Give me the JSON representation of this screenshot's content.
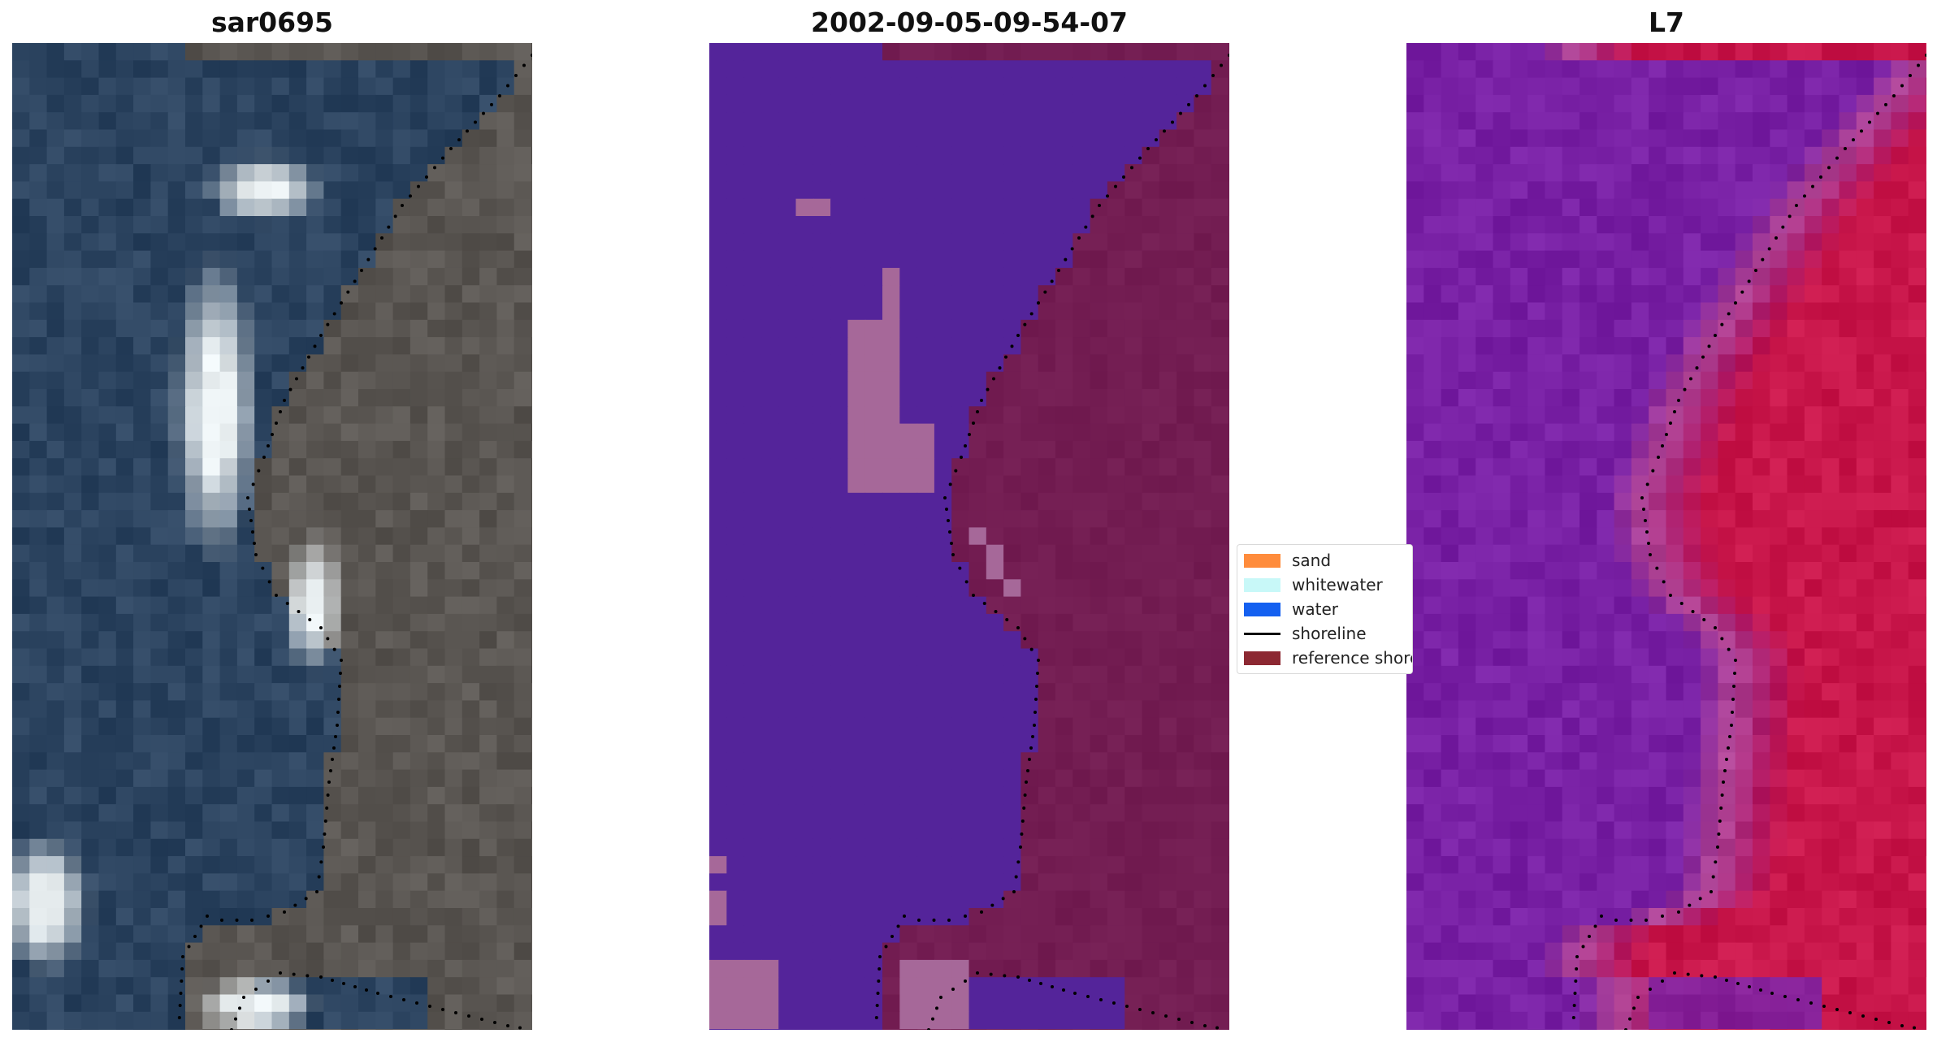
{
  "panels": [
    {
      "title": "sar0695",
      "kind": "rgb-image"
    },
    {
      "title": "2002-09-05-09-54-07",
      "kind": "classification-image"
    },
    {
      "title": "L7",
      "kind": "false-color-image"
    }
  ],
  "legend": {
    "items": [
      {
        "label": "sand",
        "type": "patch",
        "color": "#ff8c3c"
      },
      {
        "label": "whitewater",
        "type": "patch",
        "color": "#c8f8f8"
      },
      {
        "label": "water",
        "type": "patch",
        "color": "#1460f0"
      },
      {
        "label": "shoreline",
        "type": "line",
        "color": "#000000"
      },
      {
        "label": "reference shoreline",
        "type": "patch",
        "color": "#8c2832"
      }
    ]
  },
  "colors": {
    "rgb_water": "#2c4460",
    "rgb_land": "#5a5652",
    "rgb_whitewater": "#e8eef0",
    "class_water": "#54249a",
    "class_land": "#731d52",
    "class_sand": "#a66899",
    "l7_water": "#7820a4",
    "l7_land": "#c8164a",
    "shoreline_dots": "#000000"
  }
}
